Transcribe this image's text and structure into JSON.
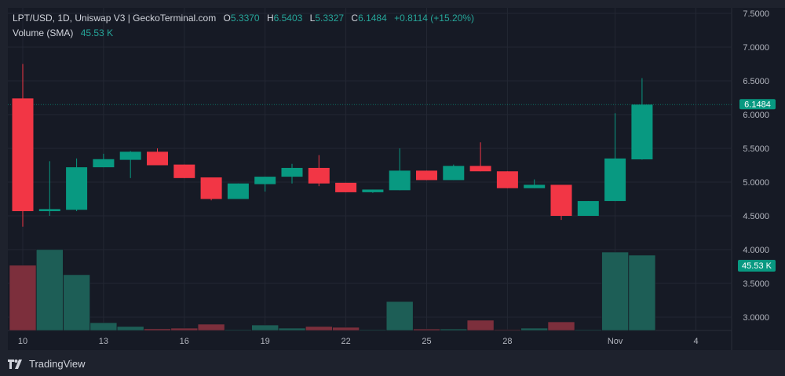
{
  "header": {
    "symbol_line": "LPT/USD, 1D, Uniswap V3 | GeckoTerminal.com",
    "open_label": "O",
    "open": "5.3370",
    "high_label": "H",
    "high": "6.5403",
    "low_label": "L",
    "low": "5.3327",
    "close_label": "C",
    "close": "6.1484",
    "change": "+0.8114 (+15.20%)",
    "volume_label": "Volume (SMA)",
    "volume_value": "45.53 K"
  },
  "footer": {
    "brand": "TradingView",
    "logo_icon": "tradingview-logo-icon"
  },
  "colors": {
    "up": "#089981",
    "down": "#f23645",
    "vol_up": "#1d5e56",
    "vol_down": "#7c2f3c",
    "background": "#161a25",
    "grid": "#232733",
    "text": "#b2b5be"
  },
  "chart_data": {
    "type": "candlestick",
    "title": "LPT/USD, 1D, Uniswap V3 | GeckoTerminal.com",
    "x_tick_labels": [
      "10",
      "13",
      "16",
      "19",
      "22",
      "25",
      "28",
      "Nov",
      "4"
    ],
    "y_tick_labels": [
      "7.5000",
      "7.0000",
      "6.5000",
      "6.0000",
      "5.5000",
      "5.0000",
      "4.5000",
      "4.0000",
      "3.5000",
      "3.0000"
    ],
    "ylim": [
      2.8,
      7.6
    ],
    "grid": true,
    "last_price_label": "6.1484",
    "last_volume_label": "45.53 K",
    "dates": [
      "10",
      "11",
      "12",
      "13",
      "14",
      "15",
      "16",
      "17",
      "18",
      "19",
      "20",
      "21",
      "22",
      "23",
      "24",
      "25",
      "26",
      "27",
      "28",
      "29",
      "30",
      "31",
      "Nov 1",
      "Nov 2"
    ],
    "open": [
      6.24,
      4.57,
      4.59,
      5.22,
      5.33,
      5.45,
      5.26,
      5.07,
      4.75,
      4.97,
      5.08,
      5.21,
      4.99,
      4.85,
      4.88,
      5.17,
      5.03,
      5.24,
      5.16,
      4.91,
      4.96,
      4.5,
      4.72,
      5.337
    ],
    "high": [
      6.75,
      5.31,
      5.35,
      5.42,
      5.46,
      5.5,
      5.26,
      5.07,
      4.98,
      5.08,
      5.27,
      5.4,
      4.99,
      4.89,
      5.5,
      5.17,
      5.26,
      5.59,
      5.16,
      5.04,
      4.96,
      4.72,
      6.02,
      6.5403
    ],
    "low": [
      4.34,
      4.5,
      4.57,
      5.22,
      5.06,
      5.25,
      5.06,
      4.73,
      4.75,
      4.86,
      4.98,
      4.94,
      4.85,
      4.84,
      4.88,
      5.03,
      5.03,
      5.16,
      4.91,
      4.91,
      4.44,
      4.5,
      4.72,
      5.3327
    ],
    "close": [
      4.57,
      4.6,
      5.22,
      5.34,
      5.45,
      5.25,
      5.06,
      4.75,
      4.98,
      5.08,
      5.21,
      4.98,
      4.85,
      4.89,
      5.17,
      5.03,
      5.24,
      5.16,
      4.91,
      4.96,
      4.5,
      4.72,
      5.35,
      6.1484
    ],
    "volume_k": [
      39.4,
      48.9,
      33.7,
      4.7,
      2.4,
      1.0,
      1.4,
      3.8,
      0.5,
      3.3,
      1.4,
      2.4,
      1.9,
      0.5,
      17.5,
      0.9,
      0.9,
      6.2,
      0.5,
      1.4,
      5.2,
      0.5,
      47.4,
      45.53
    ]
  }
}
